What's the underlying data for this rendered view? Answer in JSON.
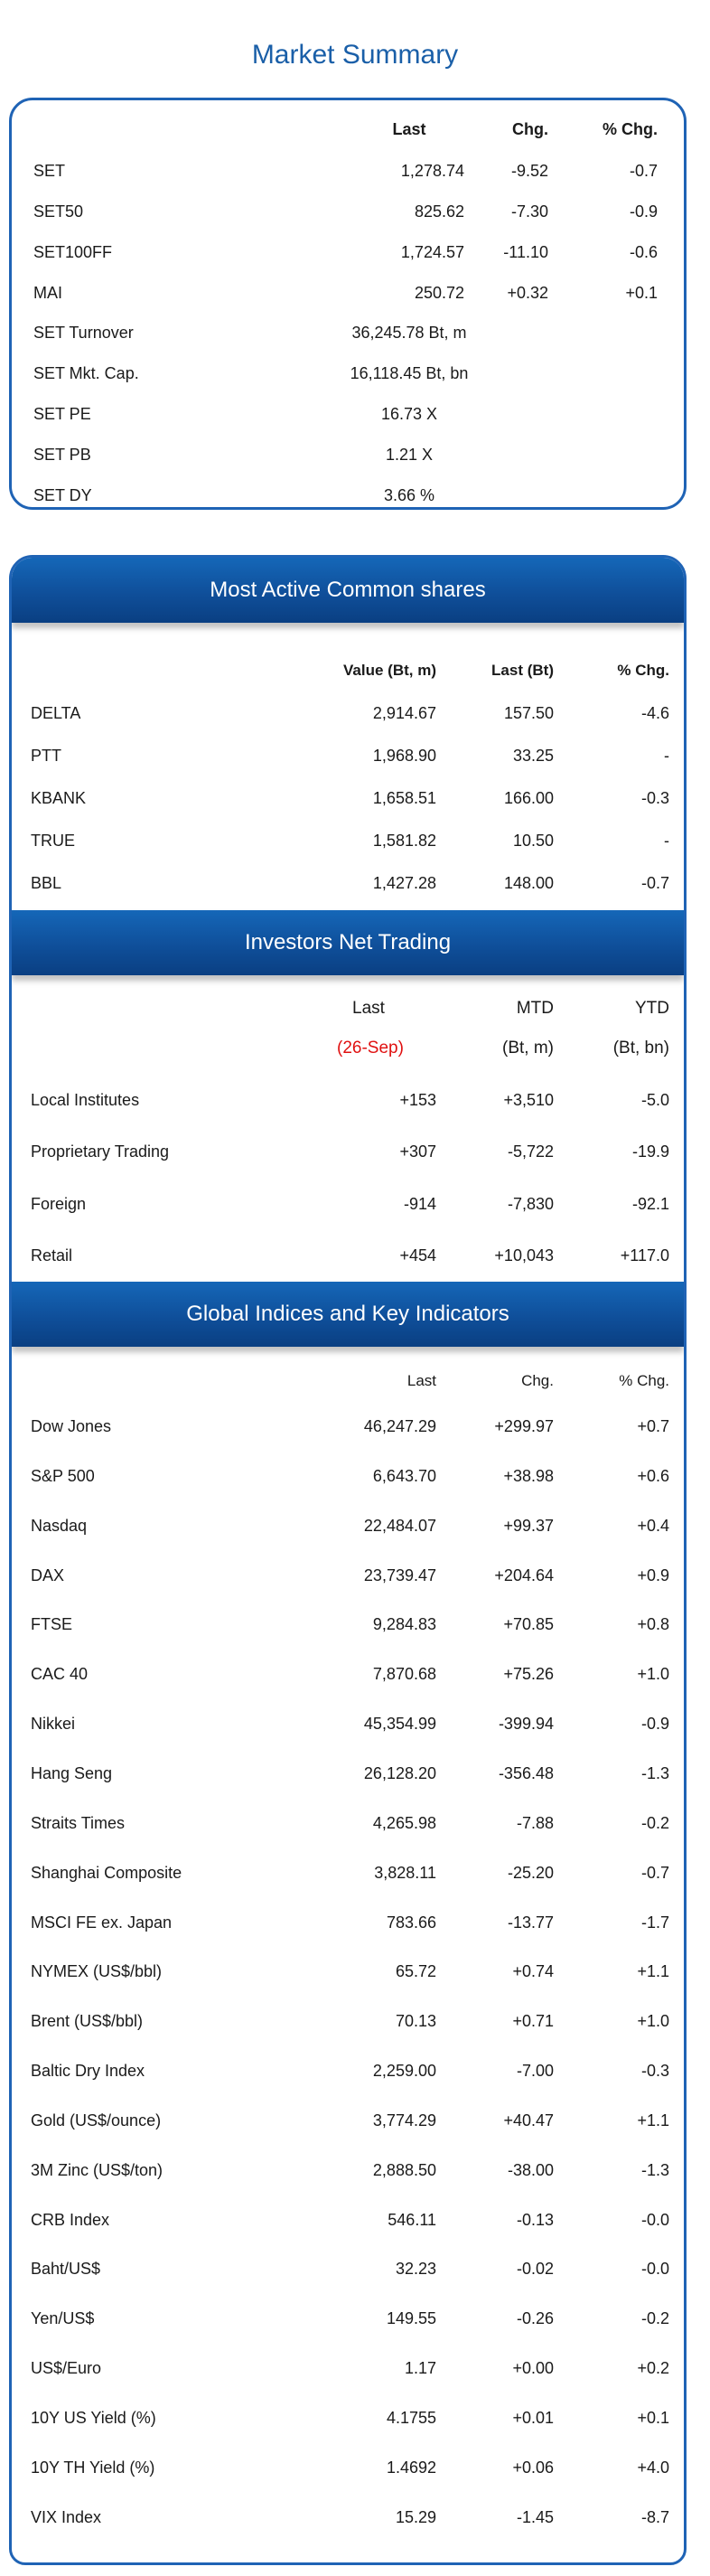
{
  "title": "Market Summary",
  "market_summary": {
    "headers": {
      "last": "Last",
      "chg": "Chg.",
      "pct": "% Chg."
    },
    "rows": [
      {
        "name": "SET",
        "last": "1,278.74",
        "chg": "-9.52",
        "pct": "-0.7"
      },
      {
        "name": "SET50",
        "last": "825.62",
        "chg": "-7.30",
        "pct": "-0.9"
      },
      {
        "name": "SET100FF",
        "last": "1,724.57",
        "chg": "-11.10",
        "pct": "-0.6"
      },
      {
        "name": "MAI",
        "last": "250.72",
        "chg": "+0.32",
        "pct": "+0.1"
      }
    ],
    "wide_rows": [
      {
        "name": "SET Turnover",
        "value": "36,245.78 Bt, m"
      },
      {
        "name": "SET Mkt. Cap.",
        "value": "16,118.45 Bt, bn"
      },
      {
        "name": "SET PE",
        "value": "16.73 X"
      },
      {
        "name": "SET PB",
        "value": "1.21 X"
      },
      {
        "name": "SET DY",
        "value": "3.66 %"
      }
    ]
  },
  "most_active": {
    "title": "Most Active Common shares",
    "headers": {
      "value": "Value (Bt, m)",
      "last": "Last (Bt)",
      "pct": "% Chg."
    },
    "rows": [
      {
        "name": "DELTA",
        "value": "2,914.67",
        "last": "157.50",
        "pct": "-4.6"
      },
      {
        "name": "PTT",
        "value": "1,968.90",
        "last": "33.25",
        "pct": "-"
      },
      {
        "name": "KBANK",
        "value": "1,658.51",
        "last": "166.00",
        "pct": "-0.3"
      },
      {
        "name": "TRUE",
        "value": "1,581.82",
        "last": "10.50",
        "pct": "-"
      },
      {
        "name": "BBL",
        "value": "1,427.28",
        "last": "148.00",
        "pct": "-0.7"
      }
    ]
  },
  "investors": {
    "title": "Investors Net Trading",
    "headers": {
      "last": "Last",
      "mtd": "MTD",
      "ytd": "YTD"
    },
    "subheaders": {
      "last": "(26-Sep)",
      "mtd": "(Bt, m)",
      "ytd": "(Bt, bn)"
    },
    "rows": [
      {
        "name": "Local Institutes",
        "last": "+153",
        "mtd": "+3,510",
        "ytd": "-5.0"
      },
      {
        "name": "Proprietary Trading",
        "last": "+307",
        "mtd": "-5,722",
        "ytd": "-19.9"
      },
      {
        "name": "Foreign",
        "last": "-914",
        "mtd": "-7,830",
        "ytd": "-92.1"
      },
      {
        "name": "Retail",
        "last": "+454",
        "mtd": "+10,043",
        "ytd": "+117.0"
      }
    ]
  },
  "global": {
    "title": "Global Indices and Key Indicators",
    "headers": {
      "last": "Last",
      "chg": "Chg.",
      "pct": "% Chg."
    },
    "rows": [
      {
        "name": "Dow Jones",
        "last": "46,247.29",
        "chg": "+299.97",
        "pct": "+0.7"
      },
      {
        "name": "S&P 500",
        "last": "6,643.70",
        "chg": "+38.98",
        "pct": "+0.6"
      },
      {
        "name": "Nasdaq",
        "last": "22,484.07",
        "chg": "+99.37",
        "pct": "+0.4"
      },
      {
        "name": "DAX",
        "last": "23,739.47",
        "chg": "+204.64",
        "pct": "+0.9"
      },
      {
        "name": "FTSE",
        "last": "9,284.83",
        "chg": "+70.85",
        "pct": "+0.8"
      },
      {
        "name": "CAC 40",
        "last": "7,870.68",
        "chg": "+75.26",
        "pct": "+1.0"
      },
      {
        "name": "Nikkei",
        "last": "45,354.99",
        "chg": "-399.94",
        "pct": "-0.9"
      },
      {
        "name": "Hang Seng",
        "last": "26,128.20",
        "chg": "-356.48",
        "pct": "-1.3"
      },
      {
        "name": "Straits Times",
        "last": "4,265.98",
        "chg": "-7.88",
        "pct": "-0.2"
      },
      {
        "name": "Shanghai Composite",
        "last": "3,828.11",
        "chg": "-25.20",
        "pct": "-0.7"
      },
      {
        "name": "MSCI FE ex. Japan",
        "last": "783.66",
        "chg": "-13.77",
        "pct": "-1.7"
      },
      {
        "name": "NYMEX (US$/bbl)",
        "last": "65.72",
        "chg": "+0.74",
        "pct": "+1.1"
      },
      {
        "name": "Brent (US$/bbl)",
        "last": "70.13",
        "chg": "+0.71",
        "pct": "+1.0"
      },
      {
        "name": "Baltic Dry Index",
        "last": "2,259.00",
        "chg": "-7.00",
        "pct": "-0.3"
      },
      {
        "name": "Gold (US$/ounce)",
        "last": "3,774.29",
        "chg": "+40.47",
        "pct": "+1.1"
      },
      {
        "name": "3M Zinc (US$/ton)",
        "last": "2,888.50",
        "chg": "-38.00",
        "pct": "-1.3"
      },
      {
        "name": "CRB Index",
        "last": "546.11",
        "chg": "-0.13",
        "pct": "-0.0"
      },
      {
        "name": "Baht/US$",
        "last": "32.23",
        "chg": "-0.02",
        "pct": "-0.0"
      },
      {
        "name": "Yen/US$",
        "last": "149.55",
        "chg": "-0.26",
        "pct": "-0.2"
      },
      {
        "name": "US$/Euro",
        "last": "1.17",
        "chg": "+0.00",
        "pct": "+0.2"
      },
      {
        "name": "10Y US Yield (%)",
        "last": "4.1755",
        "chg": "+0.01",
        "pct": "+0.1"
      },
      {
        "name": "10Y TH Yield (%)",
        "last": "1.4692",
        "chg": "+0.06",
        "pct": "+4.0"
      },
      {
        "name": "VIX Index",
        "last": "15.29",
        "chg": "-1.45",
        "pct": "-8.7"
      }
    ]
  }
}
